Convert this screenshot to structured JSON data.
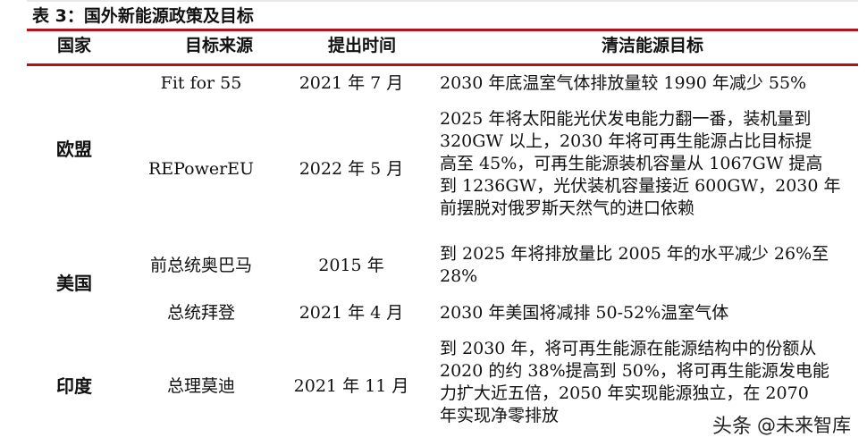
{
  "caption": "表 3：国外新能源政策及目标",
  "headers": [
    "国家",
    "目标来源",
    "提出时间",
    "清洁能源目标"
  ],
  "rows": [
    {
      "country": "欧盟",
      "source": "Fit for 55",
      "time": "2021 年 7 月",
      "goal_lines": [
        "2030 年底温室气体排放量较 1990 年减少 55%"
      ]
    },
    {
      "country": "",
      "source": "REPowerEU",
      "time": "2022 年 5 月",
      "goal_lines": [
        "2025 年将太阳能光伏发电能力翻一番，装机量到",
        "320GW 以上，2030 年将可再生能源占比目标提",
        "高至 45%，可再生能源装机容量从 1067GW 提高",
        "到 1236GW，光伏装机容量接近 600GW，2030 年",
        "前摆脱对俄罗斯天然气的进口依赖"
      ]
    },
    {
      "country": "美国",
      "source": "前总统奥巴马",
      "time": "2015 年",
      "goal_lines": [
        "到 2025 年将排放量比 2005 年的水平减少 26%至",
        "28%"
      ]
    },
    {
      "country": "",
      "source": "总统拜登",
      "time": "2021 年 4 月",
      "goal_lines": [
        "2030 年美国将减排 50-52%温室气体"
      ]
    },
    {
      "country": "印度",
      "source": "总理莫迪",
      "time": "2021 年 11 月",
      "goal_lines": [
        "到 2030 年，将可再生能源在能源结构中的份额从",
        "2020 的约 38%提高到 50%，将可再生能源发电能",
        "力扩大近五倍，2050 年实现能源独立，在 2070",
        "年实现净零排放"
      ]
    }
  ],
  "watermark": {
    "prefix": "头条",
    "text": "@未来智库"
  }
}
